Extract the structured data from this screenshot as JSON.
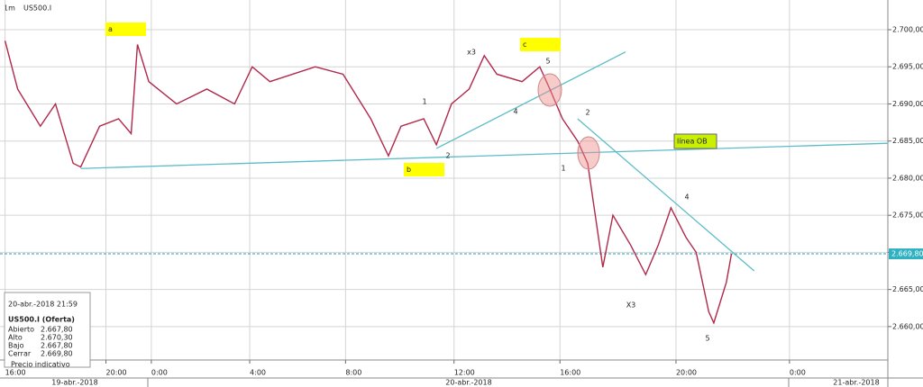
{
  "header": {
    "timeframe": "1m",
    "symbol": "US500.I"
  },
  "chart_data": {
    "type": "line",
    "color": "#b0284a",
    "grid": true,
    "x": [
      0,
      0.5,
      1.4,
      2,
      2.7,
      3,
      3.75,
      4.5,
      5,
      5.25,
      5.7,
      6.8,
      8,
      9.1,
      9.8,
      10.5,
      12.3,
      13.4,
      14.5,
      15.2,
      15.7,
      16.6,
      17.1,
      17.7,
      18.4,
      19,
      19.5,
      20.5,
      21.2,
      21.6,
      22.1,
      22.7,
      23.1,
      23.4,
      23.7,
      24.1,
      24.8,
      25.4,
      25.9,
      26.4,
      27,
      27.4,
      27.9,
      28.1,
      28.6,
      28.8
    ],
    "values": [
      2698.5,
      2692,
      2687,
      2690,
      2682,
      2681.5,
      2687,
      2688,
      2686,
      2698,
      2693,
      2690,
      2692,
      2690,
      2695,
      2693,
      2695,
      2694,
      2688,
      2683,
      2687,
      2688,
      2684.5,
      2690,
      2692,
      2696.5,
      2694,
      2693,
      2695,
      2692,
      2688,
      2685,
      2682,
      2675,
      2668,
      2675,
      2671,
      2667,
      2671,
      2676,
      2672,
      2670,
      2662,
      2660.5,
      2666,
      2669.8
    ],
    "xlim": [
      -0.2,
      35
    ],
    "ylim": [
      2655.5,
      2704
    ],
    "xticks": [
      {
        "value": 0,
        "label": "16:00"
      },
      {
        "value": 4,
        "label": "20:00"
      },
      {
        "value": 5.8,
        "label": "0:00"
      },
      {
        "value": 9.7,
        "label": "4:00"
      },
      {
        "value": 13.5,
        "label": "8:00"
      },
      {
        "value": 17.8,
        "label": "12:00"
      },
      {
        "value": 22,
        "label": "16:00"
      },
      {
        "value": 26.6,
        "label": "20:00"
      },
      {
        "value": 31.1,
        "label": "0:00"
      }
    ],
    "yticks": [
      {
        "value": 2660,
        "label": "2.660,00"
      },
      {
        "value": 2665,
        "label": "2.665,00"
      },
      {
        "value": 2670,
        "label": "2.670,00"
      },
      {
        "value": 2675,
        "label": "2.675,00"
      },
      {
        "value": 2680,
        "label": "2.680,00"
      },
      {
        "value": 2685,
        "label": "2.685,00"
      },
      {
        "value": 2690,
        "label": "2.690,00"
      },
      {
        "value": 2695,
        "label": "2.695,00"
      },
      {
        "value": 2700,
        "label": "2.700,00"
      }
    ],
    "dates": [
      "19-abr.-2018",
      "20-abr.-2018",
      "21-abr.-2018"
    ],
    "current_price": {
      "value": 2669.8,
      "label": "2.669,80"
    },
    "trendlines": [
      {
        "x": [
          3,
          35
        ],
        "y": [
          2681.3,
          2684.7
        ]
      },
      {
        "x": [
          17.1,
          24.6
        ],
        "y": [
          2684,
          2697
        ]
      },
      {
        "x": [
          22.7,
          29.7
        ],
        "y": [
          2688,
          2667.5
        ]
      }
    ],
    "box_labels": [
      "a",
      "b",
      "c",
      "línea OB"
    ],
    "wave_labels": [
      "x3",
      "5",
      "4",
      "1",
      "2",
      "2",
      "1",
      "4",
      "X3",
      "5"
    ]
  },
  "info": {
    "datetime": "20-abr.-2018 21:59",
    "title": "US500.I (Oferta)",
    "rows": [
      [
        "Abierto",
        "2.667,80"
      ],
      [
        "Alto",
        "2.670,30"
      ],
      [
        "Bajo",
        "2.667,80"
      ],
      [
        "Cerrar",
        "2.669,80"
      ]
    ],
    "note": "Precio indicativo"
  }
}
